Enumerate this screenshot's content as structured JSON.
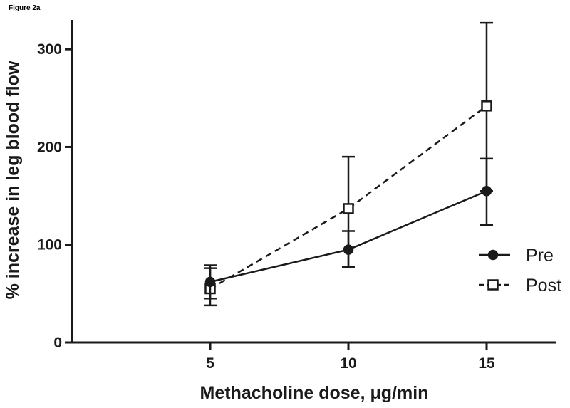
{
  "figure_label": "Figure 2a",
  "chart_data": {
    "type": "line",
    "xlabel": "Methacholine dose, μg/min",
    "ylabel": "% increase in leg blood flow",
    "x": [
      5,
      10,
      15
    ],
    "xlim": [
      0,
      17.5
    ],
    "ylim": [
      0,
      330
    ],
    "xticks": [
      5,
      10,
      15
    ],
    "yticks": [
      0,
      100,
      200,
      300
    ],
    "legend_position": "right",
    "series": [
      {
        "name": "Pre",
        "marker": "filled-circle",
        "line": "solid",
        "values": [
          62,
          95,
          155
        ],
        "err_low": [
          45,
          77,
          120
        ],
        "err_high": [
          79,
          114,
          188
        ]
      },
      {
        "name": "Post",
        "marker": "open-square",
        "line": "dashed",
        "values": [
          55,
          137,
          242
        ],
        "err_low": [
          38,
          77,
          155
        ],
        "err_high": [
          76,
          190,
          327
        ]
      }
    ],
    "colors": {
      "line": "#1a1a1a",
      "background": "#ffffff"
    }
  }
}
